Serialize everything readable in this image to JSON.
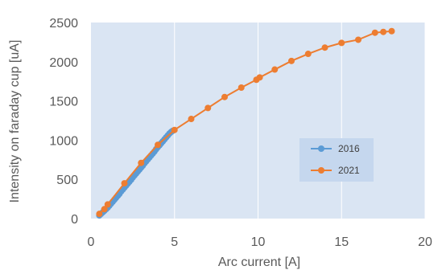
{
  "chart_data": {
    "type": "line",
    "title": "",
    "xlabel": "Arc current [A]",
    "ylabel": "Intensity on faraday cup [uA]",
    "xlim": [
      0,
      20
    ],
    "ylim": [
      0,
      2500
    ],
    "xticks": [
      0,
      5,
      10,
      15,
      20
    ],
    "yticks": [
      0,
      500,
      1000,
      1500,
      2000,
      2500
    ],
    "grid": "vertical",
    "legend": "right",
    "colors": {
      "plot_background": "#dae5f3",
      "legend_background": "#c5d7ee",
      "grid": "#ffffff",
      "series_2016": "#5b9bd5",
      "series_2021": "#ed7d31"
    },
    "series": [
      {
        "name": "2016",
        "color": "#5b9bd5",
        "x": [
          0.5,
          0.6,
          0.7,
          0.8,
          0.9,
          1.0,
          1.1,
          1.2,
          1.3,
          1.4,
          1.5,
          1.6,
          1.7,
          1.8,
          1.9,
          2.0,
          2.1,
          2.2,
          2.3,
          2.4,
          2.5,
          2.6,
          2.7,
          2.8,
          2.9,
          3.0,
          3.1,
          3.2,
          3.3,
          3.4,
          3.5,
          3.6,
          3.7,
          3.8,
          3.9,
          4.0,
          4.1,
          4.2,
          4.3,
          4.4,
          4.5,
          4.6,
          4.7,
          4.8,
          4.9
        ],
        "y": [
          40,
          60,
          80,
          100,
          120,
          140,
          165,
          190,
          215,
          240,
          265,
          290,
          315,
          345,
          370,
          395,
          420,
          445,
          470,
          495,
          525,
          550,
          575,
          600,
          625,
          650,
          675,
          705,
          730,
          755,
          780,
          805,
          830,
          855,
          885,
          910,
          935,
          960,
          985,
          1010,
          1035,
          1060,
          1085,
          1105,
          1120
        ]
      },
      {
        "name": "2021",
        "color": "#ed7d31",
        "x": [
          0.5,
          0.8,
          1.0,
          2.0,
          3.0,
          4.0,
          5.0,
          6.0,
          7.0,
          8.0,
          9.0,
          9.9,
          10.1,
          11.0,
          12.0,
          13.0,
          14.0,
          15.0,
          16.0,
          17.0,
          17.5,
          18.0
        ],
        "y": [
          60,
          120,
          180,
          450,
          710,
          940,
          1130,
          1270,
          1410,
          1550,
          1670,
          1770,
          1800,
          1900,
          2010,
          2100,
          2180,
          2240,
          2280,
          2370,
          2380,
          2390
        ]
      }
    ]
  }
}
